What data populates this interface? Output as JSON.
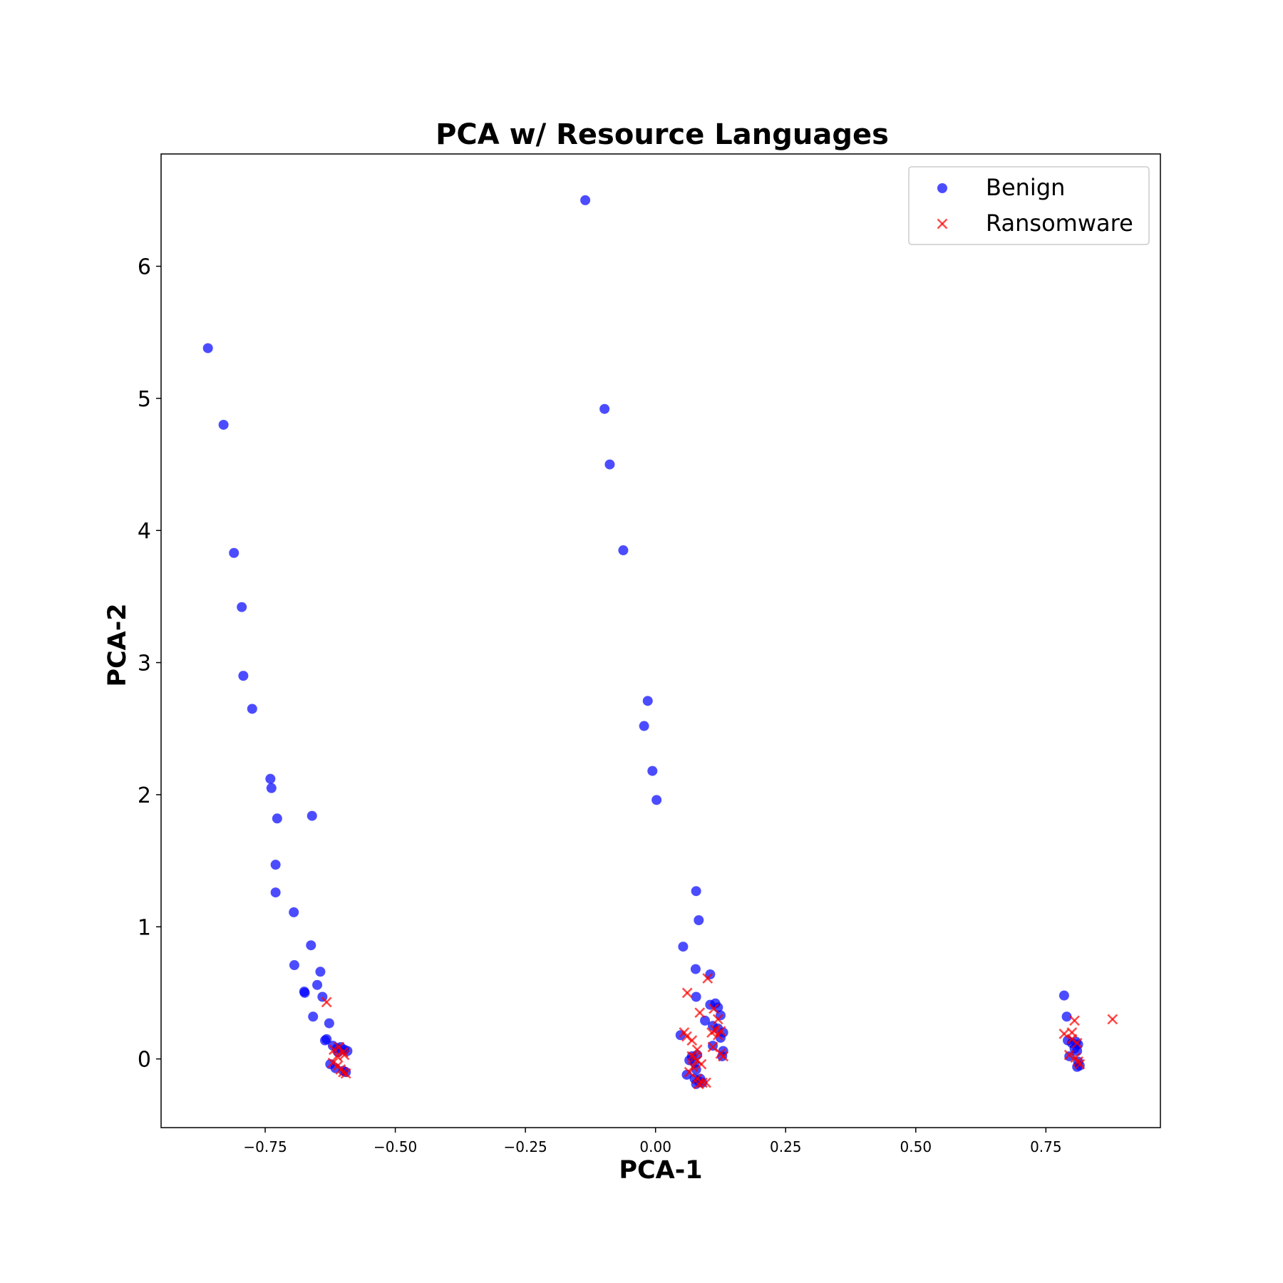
{
  "chart_data": {
    "type": "scatter",
    "title": "PCA w/ Resource Languages",
    "xlabel": "PCA-1",
    "ylabel": "PCA-2",
    "xlim": [
      -0.95,
      0.97
    ],
    "ylim": [
      -0.52,
      6.85
    ],
    "xticks": [
      -0.75,
      -0.5,
      -0.25,
      0.0,
      0.25,
      0.5,
      0.75
    ],
    "xtick_labels": [
      "−0.75",
      "−0.50",
      "−0.25",
      "0.00",
      "0.25",
      "0.50",
      "0.75"
    ],
    "yticks": [
      0,
      1,
      2,
      3,
      4,
      5,
      6
    ],
    "ytick_labels": [
      "0",
      "1",
      "2",
      "3",
      "4",
      "5",
      "6"
    ],
    "grid": false,
    "legend_position": "top-right",
    "series": [
      {
        "name": "Benign",
        "marker": "circle",
        "color": "#0000ff",
        "points": [
          [
            -0.86,
            5.38
          ],
          [
            -0.83,
            4.8
          ],
          [
            -0.81,
            3.83
          ],
          [
            -0.795,
            3.42
          ],
          [
            -0.792,
            2.9
          ],
          [
            -0.775,
            2.65
          ],
          [
            -0.74,
            2.12
          ],
          [
            -0.738,
            2.05
          ],
          [
            -0.727,
            1.82
          ],
          [
            -0.73,
            1.47
          ],
          [
            -0.73,
            1.26
          ],
          [
            -0.695,
            1.11
          ],
          [
            -0.66,
            1.84
          ],
          [
            -0.694,
            0.71
          ],
          [
            -0.662,
            0.86
          ],
          [
            -0.644,
            0.66
          ],
          [
            -0.65,
            0.56
          ],
          [
            -0.675,
            0.51
          ],
          [
            -0.674,
            0.5
          ],
          [
            -0.64,
            0.47
          ],
          [
            -0.658,
            0.32
          ],
          [
            -0.627,
            0.27
          ],
          [
            -0.635,
            0.14
          ],
          [
            -0.632,
            0.15
          ],
          [
            -0.62,
            0.1
          ],
          [
            -0.612,
            0.08
          ],
          [
            -0.605,
            0.09
          ],
          [
            -0.598,
            0.07
          ],
          [
            -0.61,
            0.05
          ],
          [
            -0.625,
            -0.04
          ],
          [
            -0.615,
            -0.07
          ],
          [
            -0.6,
            -0.09
          ],
          [
            -0.595,
            -0.1
          ],
          [
            -0.592,
            0.06
          ],
          [
            -0.135,
            6.5
          ],
          [
            -0.098,
            4.92
          ],
          [
            -0.088,
            4.5
          ],
          [
            -0.062,
            3.85
          ],
          [
            -0.015,
            2.71
          ],
          [
            -0.022,
            2.52
          ],
          [
            -0.006,
            2.18
          ],
          [
            0.002,
            1.96
          ],
          [
            0.078,
            1.27
          ],
          [
            0.083,
            1.05
          ],
          [
            0.053,
            0.85
          ],
          [
            0.077,
            0.68
          ],
          [
            0.105,
            0.64
          ],
          [
            0.078,
            0.47
          ],
          [
            0.105,
            0.41
          ],
          [
            0.115,
            0.42
          ],
          [
            0.12,
            0.39
          ],
          [
            0.125,
            0.33
          ],
          [
            0.095,
            0.29
          ],
          [
            0.11,
            0.25
          ],
          [
            0.12,
            0.23
          ],
          [
            0.13,
            0.2
          ],
          [
            0.048,
            0.18
          ],
          [
            0.125,
            0.16
          ],
          [
            0.11,
            0.1
          ],
          [
            0.13,
            0.06
          ],
          [
            0.128,
            0.02
          ],
          [
            0.07,
            0.02
          ],
          [
            0.065,
            -0.01
          ],
          [
            0.08,
            0.03
          ],
          [
            0.075,
            -0.03
          ],
          [
            0.078,
            -0.08
          ],
          [
            0.06,
            -0.12
          ],
          [
            0.075,
            -0.15
          ],
          [
            0.083,
            -0.17
          ],
          [
            0.086,
            -0.15
          ],
          [
            0.09,
            -0.18
          ],
          [
            0.078,
            -0.19
          ],
          [
            0.785,
            0.48
          ],
          [
            0.79,
            0.32
          ],
          [
            0.792,
            0.14
          ],
          [
            0.8,
            0.12
          ],
          [
            0.808,
            0.13
          ],
          [
            0.812,
            0.11
          ],
          [
            0.81,
            0.06
          ],
          [
            0.805,
            0.08
          ],
          [
            0.795,
            0.02
          ],
          [
            0.812,
            -0.02
          ],
          [
            0.815,
            -0.05
          ],
          [
            0.81,
            -0.06
          ]
        ]
      },
      {
        "name": "Ransomware",
        "marker": "x",
        "color": "#ff0000",
        "points": [
          [
            -0.632,
            0.43
          ],
          [
            -0.618,
            0.07
          ],
          [
            -0.608,
            0.09
          ],
          [
            -0.6,
            0.05
          ],
          [
            -0.612,
            0.02
          ],
          [
            -0.598,
            0.03
          ],
          [
            -0.62,
            -0.03
          ],
          [
            -0.61,
            -0.05
          ],
          [
            -0.6,
            -0.1
          ],
          [
            -0.605,
            -0.08
          ],
          [
            -0.595,
            -0.11
          ],
          [
            0.1,
            0.61
          ],
          [
            0.061,
            0.5
          ],
          [
            0.085,
            0.35
          ],
          [
            0.112,
            0.38
          ],
          [
            0.12,
            0.3
          ],
          [
            0.115,
            0.22
          ],
          [
            0.12,
            0.18
          ],
          [
            0.125,
            0.21
          ],
          [
            0.108,
            0.2
          ],
          [
            0.055,
            0.2
          ],
          [
            0.06,
            0.17
          ],
          [
            0.07,
            0.14
          ],
          [
            0.08,
            0.07
          ],
          [
            0.07,
            0.02
          ],
          [
            0.08,
            -0.01
          ],
          [
            0.075,
            0.01
          ],
          [
            0.088,
            -0.04
          ],
          [
            0.072,
            -0.06
          ],
          [
            0.065,
            -0.1
          ],
          [
            0.08,
            -0.15
          ],
          [
            0.09,
            -0.18
          ],
          [
            0.097,
            -0.18
          ],
          [
            0.083,
            -0.19
          ],
          [
            0.11,
            0.09
          ],
          [
            0.13,
            0.02
          ],
          [
            0.125,
            0.04
          ],
          [
            0.805,
            0.29
          ],
          [
            0.785,
            0.19
          ],
          [
            0.8,
            0.2
          ],
          [
            0.8,
            0.15
          ],
          [
            0.81,
            0.12
          ],
          [
            0.795,
            0.03
          ],
          [
            0.812,
            -0.02
          ],
          [
            0.815,
            -0.04
          ],
          [
            0.807,
            0.01
          ],
          [
            0.878,
            0.3
          ]
        ]
      }
    ]
  }
}
